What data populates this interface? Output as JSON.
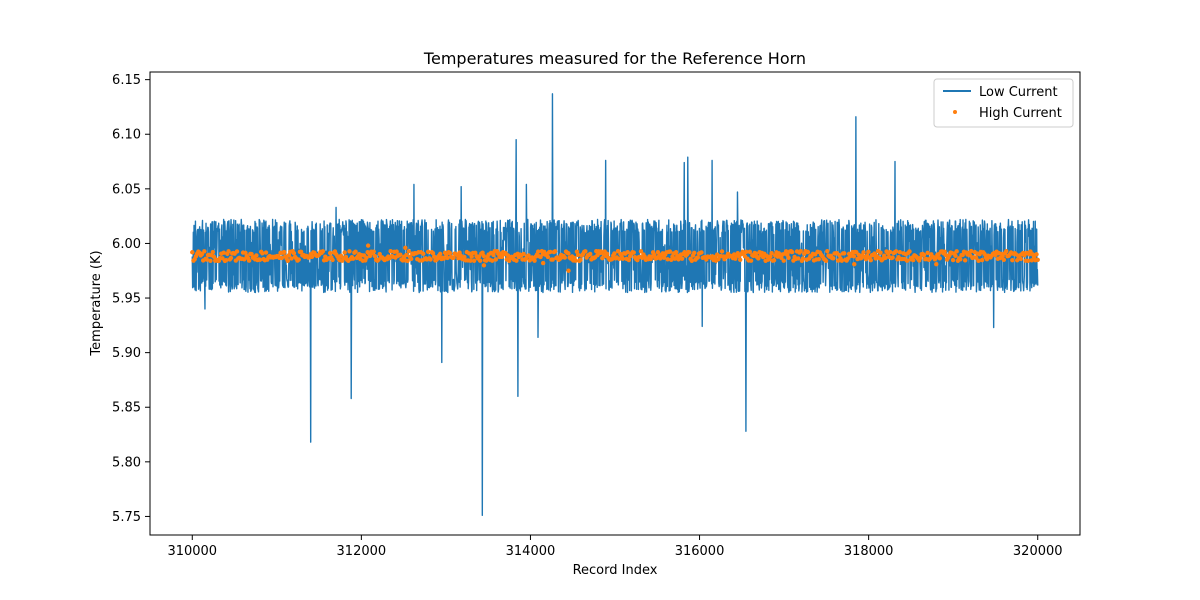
{
  "chart_data": {
    "type": "line",
    "title": "Temperatures measured for the Reference Horn",
    "xlabel": "Record Index",
    "ylabel": "Temperature (K)",
    "xlim": [
      309500,
      320500
    ],
    "ylim": [
      5.733,
      6.157
    ],
    "x_ticks": [
      310000,
      312000,
      314000,
      316000,
      318000,
      320000
    ],
    "x_tick_labels": [
      "310000",
      "312000",
      "314000",
      "316000",
      "318000",
      "320000"
    ],
    "y_ticks": [
      5.75,
      5.8,
      5.85,
      5.9,
      5.95,
      6.0,
      6.05,
      6.1,
      6.15
    ],
    "y_tick_labels": [
      "5.75",
      "5.80",
      "5.85",
      "5.90",
      "5.95",
      "6.00",
      "6.05",
      "6.10",
      "6.15"
    ],
    "grid": false,
    "legend_position": "top-right",
    "series": [
      {
        "name": "Low Current",
        "kind": "line",
        "color": "#1f77b4",
        "x_range": [
          310000,
          320000
        ],
        "baseline": 5.988,
        "typical_band": [
          5.955,
          6.022
        ],
        "spikes": [
          {
            "x": 310150,
            "y": 5.94
          },
          {
            "x": 311400,
            "y": 5.818
          },
          {
            "x": 311700,
            "y": 6.033
          },
          {
            "x": 311880,
            "y": 5.858
          },
          {
            "x": 312620,
            "y": 6.054
          },
          {
            "x": 312950,
            "y": 5.891
          },
          {
            "x": 313180,
            "y": 6.052
          },
          {
            "x": 313430,
            "y": 5.751
          },
          {
            "x": 313830,
            "y": 6.095
          },
          {
            "x": 313850,
            "y": 5.86
          },
          {
            "x": 313950,
            "y": 6.054
          },
          {
            "x": 314090,
            "y": 5.914
          },
          {
            "x": 314260,
            "y": 6.137
          },
          {
            "x": 314890,
            "y": 6.076
          },
          {
            "x": 315820,
            "y": 6.074
          },
          {
            "x": 315860,
            "y": 6.079
          },
          {
            "x": 316030,
            "y": 5.924
          },
          {
            "x": 316150,
            "y": 6.076
          },
          {
            "x": 316450,
            "y": 6.047
          },
          {
            "x": 316550,
            "y": 5.828
          },
          {
            "x": 317850,
            "y": 6.116
          },
          {
            "x": 318310,
            "y": 6.075
          },
          {
            "x": 319480,
            "y": 5.923
          }
        ]
      },
      {
        "name": "High Current",
        "kind": "scatter",
        "color": "#ff7f0e",
        "x_range": [
          310000,
          320000
        ],
        "baseline": 5.988,
        "typical_band": [
          5.984,
          5.993
        ],
        "outliers": [
          {
            "x": 312080,
            "y": 5.998
          },
          {
            "x": 312520,
            "y": 5.996
          },
          {
            "x": 313450,
            "y": 5.98
          },
          {
            "x": 314150,
            "y": 5.982
          },
          {
            "x": 314450,
            "y": 5.975
          },
          {
            "x": 317830,
            "y": 5.981
          },
          {
            "x": 318800,
            "y": 5.981
          }
        ]
      }
    ]
  }
}
